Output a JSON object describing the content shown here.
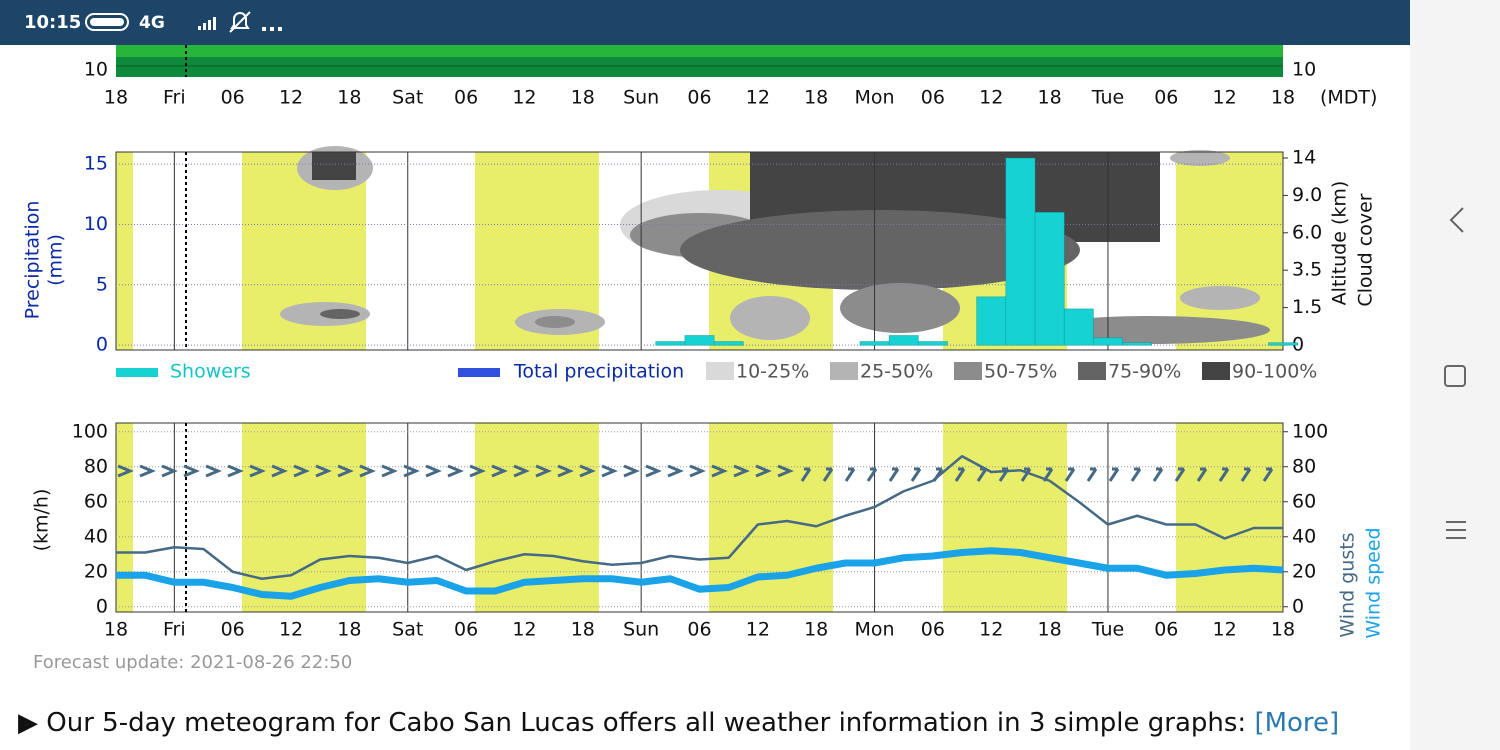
{
  "status_bar": {
    "time": "10:15",
    "network": "4G"
  },
  "chart_data": [
    {
      "type": "strip",
      "color": "#0f8a3c",
      "left_label": "10",
      "right_label": "10",
      "timezone": "(MDT)",
      "categories": [
        "18",
        null,
        "Fri",
        null,
        "06",
        null,
        "12",
        null,
        "18",
        null,
        "Sat",
        null,
        "06",
        null,
        "12",
        null,
        "18",
        null,
        "Sun",
        null,
        "06",
        null,
        "12",
        null,
        "18",
        null,
        "Mon",
        null,
        "06",
        null,
        "12",
        null,
        "18",
        null,
        "Tue",
        null,
        "06",
        null,
        "12",
        null,
        "18"
      ]
    },
    {
      "type": "bar",
      "ylabel": "Precipitation",
      "ylabel_unit": "(mm)",
      "y2label": "Altitude (km)",
      "y2label_2": "Cloud cover",
      "ylim": [
        -0.4,
        16
      ],
      "yticks": [
        0,
        5,
        10,
        15
      ],
      "y2ticks": [
        {
          "value": 0,
          "label": "0"
        },
        {
          "value": 1.5,
          "label": "1.5"
        },
        {
          "value": 3.5,
          "label": "3.5"
        },
        {
          "value": 6,
          "label": "6.0"
        },
        {
          "value": 9,
          "label": "9.0"
        },
        {
          "value": 14,
          "label": "14"
        }
      ],
      "series": [
        {
          "name": "Showers",
          "color": "#16d2d2",
          "values": [
            0,
            0,
            0,
            0,
            0,
            0,
            0,
            0,
            0,
            0,
            0,
            0,
            0,
            0,
            0,
            0,
            0,
            0,
            0,
            0.3,
            0.8,
            0.3,
            0,
            0,
            0,
            0,
            0.3,
            0.8,
            0.3,
            0,
            4,
            15.5,
            11,
            3,
            0.6,
            0.2,
            0,
            0,
            0,
            0,
            0.2
          ]
        }
      ],
      "legend_extra": {
        "name": "Total precipitation",
        "color": "#3150e0"
      },
      "cloud_legend": [
        {
          "name": "10-25%",
          "color": "#d9d9d9"
        },
        {
          "name": "25-50%",
          "color": "#b4b4b4"
        },
        {
          "name": "50-75%",
          "color": "#8c8c8c"
        },
        {
          "name": "75-90%",
          "color": "#646464"
        },
        {
          "name": "90-100%",
          "color": "#444444"
        }
      ]
    },
    {
      "type": "line",
      "ylabel": "(km/h)",
      "ylim": [
        -3,
        105
      ],
      "yticks": [
        0,
        20,
        40,
        60,
        80,
        100
      ],
      "y2lim": [
        -3,
        105
      ],
      "y2ticks": [
        0,
        20,
        40,
        60,
        80,
        100
      ],
      "categories": [
        "18",
        null,
        "Fri",
        null,
        "06",
        null,
        "12",
        null,
        "18",
        null,
        "Sat",
        null,
        "06",
        null,
        "12",
        null,
        "18",
        null,
        "Sun",
        null,
        "06",
        null,
        "12",
        null,
        "18",
        null,
        "Mon",
        null,
        "06",
        null,
        "12",
        null,
        "18",
        null,
        "Tue",
        null,
        "06",
        null,
        "12",
        null,
        "18"
      ],
      "series": [
        {
          "name": "Wind gusts",
          "color": "#466a85",
          "values": [
            31,
            31,
            34,
            33,
            20,
            16,
            18,
            27,
            29,
            28,
            25,
            29,
            21,
            26,
            30,
            29,
            26,
            24,
            25,
            29,
            27,
            28,
            47,
            49,
            46,
            52,
            57,
            66,
            72,
            86,
            77,
            78,
            72,
            60,
            47,
            52,
            47,
            47,
            39,
            45,
            45
          ]
        },
        {
          "name": "Wind speed",
          "color": "#1aa3e8",
          "values": [
            18,
            18,
            14,
            14,
            11,
            7,
            6,
            11,
            15,
            16,
            14,
            15,
            9,
            9,
            14,
            15,
            16,
            16,
            14,
            16,
            10,
            11,
            17,
            18,
            22,
            25,
            25,
            28,
            29,
            31,
            32,
            31,
            28,
            25,
            22,
            22,
            18,
            19,
            21,
            22,
            21
          ]
        }
      ]
    }
  ],
  "forecast_update": "Forecast update: 2021-08-26 22:50",
  "footer": {
    "text": "▶ Our 5-day meteogram for Cabo San Lucas offers all weather information in 3 simple graphs:",
    "link": "[More]"
  }
}
